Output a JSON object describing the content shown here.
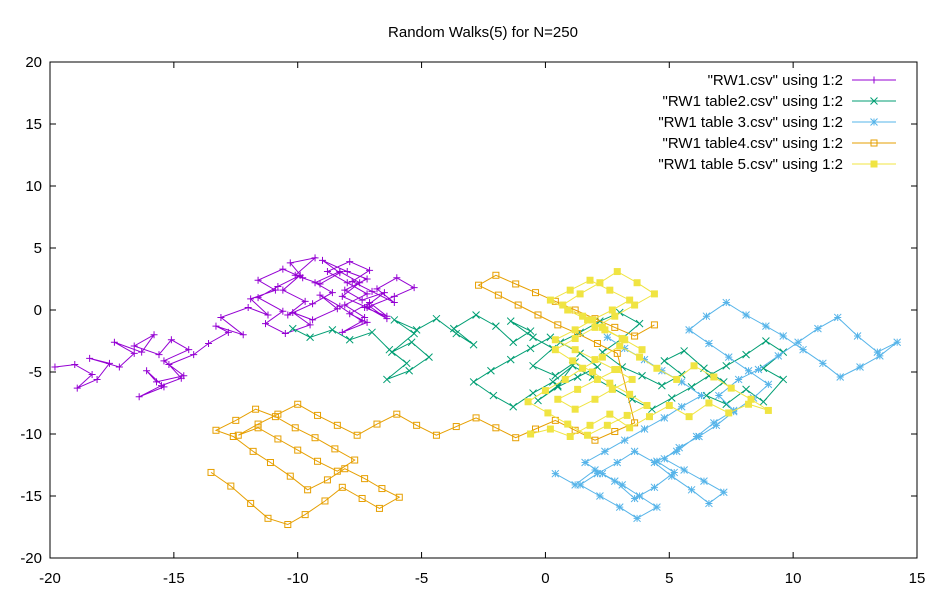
{
  "chart_data": {
    "type": "line",
    "title": "Random Walks(5) for N=250",
    "xlabel": "",
    "ylabel": "",
    "xlim": [
      -20,
      15
    ],
    "ylim": [
      -20,
      20
    ],
    "xticks": [
      -20,
      -15,
      -10,
      -5,
      0,
      5,
      10,
      15
    ],
    "yticks": [
      -20,
      -15,
      -10,
      -5,
      0,
      5,
      10,
      15,
      20
    ],
    "grid": false,
    "legend_position": "top-right",
    "series": [
      {
        "name": "\"RW1.csv\" using 1:2",
        "color": "#9400d3",
        "marker": "plus",
        "x": [
          -19.8,
          -19,
          -18.3,
          -18.9,
          -18.1,
          -17.6,
          -18.4,
          -17.2,
          -16.6,
          -17.4,
          -16.3,
          -15.8,
          -16.6,
          -15.6,
          -15.1,
          -14.4,
          -15.4,
          -14.6,
          -15.7,
          -16.1,
          -15.4,
          -16.4,
          -15.5,
          -14.7,
          -15.2,
          -14.2,
          -13.6,
          -12.8,
          -13.3,
          -12.2,
          -13.1,
          -12,
          -11.2,
          -11.9,
          -10.9,
          -11.6,
          -10.6,
          -9.8,
          -10.3,
          -9.3,
          -10.1,
          -9.1,
          -8.3,
          -9,
          -8,
          -7.2,
          -8.1,
          -7.4,
          -6.5,
          -7.3,
          -6.4,
          -7.1,
          -7.9,
          -7.2,
          -8.2,
          -7.4,
          -8.3,
          -9.1,
          -8.4,
          -9.4,
          -10.2,
          -9.5,
          -10.5,
          -11.3,
          -10.6,
          -11.6,
          -10.8,
          -9.9,
          -10.6,
          -9.7,
          -10.4,
          -9.4,
          -8.6,
          -9.3,
          -8.3,
          -7.5,
          -8.2,
          -7.2,
          -6.4,
          -7.1,
          -6.1,
          -5.3,
          -6,
          -6.8,
          -6.1,
          -7,
          -7.8,
          -7.1,
          -7.9,
          -8.8,
          -8,
          -7.2,
          -8.1,
          -7.3
        ],
        "y": [
          -4.6,
          -4.4,
          -5.2,
          -6.3,
          -5.6,
          -4.3,
          -3.9,
          -4.6,
          -3.5,
          -2.6,
          -3.4,
          -2,
          -2.9,
          -3.6,
          -2.4,
          -3.2,
          -4.1,
          -5.3,
          -5.8,
          -4.9,
          -6.2,
          -7,
          -6.1,
          -5.5,
          -4.4,
          -3.6,
          -2.7,
          -1.8,
          -1.3,
          -2,
          -0.6,
          0.2,
          -0.4,
          0.9,
          1.6,
          2.4,
          3.3,
          2.6,
          3.8,
          4.2,
          2.8,
          2.1,
          3,
          4,
          3.1,
          2.5,
          1.6,
          0.8,
          1.4,
          0.2,
          -0.5,
          0.6,
          -0.3,
          -1,
          -1.8,
          -0.9,
          0.3,
          1.2,
          0.1,
          -0.8,
          -0.2,
          -1.2,
          -1.9,
          -1.1,
          -0.1,
          1,
          1.9,
          2.8,
          1.6,
          0.7,
          -0.4,
          0.5,
          1.4,
          2.2,
          3.1,
          2.2,
          1.1,
          0.2,
          -0.7,
          0.3,
          1.1,
          1.8,
          2.6,
          1.7,
          0.6,
          1.5,
          2.3,
          3.2,
          3.9,
          3.1,
          2.2,
          1.3,
          0.4,
          -0.6
        ]
      },
      {
        "name": "\"RW1 table2.csv\" using 1:2",
        "color": "#009e73",
        "marker": "x",
        "x": [
          -10.2,
          -9.5,
          -8.6,
          -7.9,
          -7,
          -6.3,
          -5.6,
          -6.4,
          -5.5,
          -4.7,
          -5.4,
          -6.2,
          -5.3,
          -6.1,
          -5.2,
          -4.4,
          -3.6,
          -2.9,
          -3.7,
          -2.8,
          -2,
          -1.3,
          -0.6,
          -1.4,
          -0.5,
          0.3,
          -0.5,
          0.4,
          1.2,
          0.5,
          -0.3,
          0.5,
          1.3,
          2.1,
          1.4,
          0.6,
          1.4,
          2.2,
          3,
          3.8,
          3.1,
          2.3,
          3.1,
          3.9,
          4.7,
          5.5,
          4.8,
          5.6,
          6.4,
          7.2,
          6.5,
          7.3,
          8.1,
          8.8,
          9.6,
          8.8,
          9.6,
          8.9,
          8.1,
          7.3,
          6.6,
          5.9,
          5.1,
          4.3,
          3.5,
          2.7,
          1.9,
          1.1,
          0.3,
          -0.5,
          -1.3,
          -2.1,
          -2.9,
          -2.2,
          -1.4,
          -0.6,
          0.2
        ],
        "y": [
          -1.5,
          -2.2,
          -1.6,
          -2.4,
          -1.8,
          -3.2,
          -4.3,
          -5.6,
          -4.9,
          -3.8,
          -2.6,
          -3.4,
          -1.9,
          -0.8,
          -1.6,
          -0.7,
          -1.9,
          -2.8,
          -1.5,
          -0.4,
          -1.3,
          -2.6,
          -1.7,
          -0.9,
          -2.2,
          -3.1,
          -4.5,
          -5.3,
          -4.2,
          -6.1,
          -7.3,
          -6.2,
          -5.4,
          -4.6,
          -3.5,
          -2.6,
          -1.8,
          -0.9,
          -0.2,
          -1.1,
          -2.3,
          -3.4,
          -4.6,
          -5.3,
          -6.1,
          -5.2,
          -4.1,
          -3.3,
          -4.7,
          -5.8,
          -6.9,
          -7.6,
          -6.4,
          -7.4,
          -5.6,
          -4.7,
          -3.4,
          -2.5,
          -3.6,
          -4.5,
          -5.3,
          -6.2,
          -7.1,
          -8,
          -7.2,
          -6.3,
          -5.4,
          -4.5,
          -5.8,
          -6.7,
          -7.8,
          -6.9,
          -5.8,
          -4.9,
          -4,
          -3.1,
          -2.2
        ]
      },
      {
        "name": "\"RW1 table 3.csv\" using 1:2",
        "color": "#56b4e9",
        "marker": "star",
        "x": [
          0.4,
          1.2,
          2,
          2.8,
          3.6,
          4.4,
          5.2,
          4.5,
          5.3,
          6.1,
          6.8,
          7.6,
          7,
          7.8,
          8.6,
          9.4,
          10.2,
          11,
          11.8,
          12.6,
          13.4,
          14.2,
          13.5,
          12.7,
          11.9,
          11.2,
          10.4,
          9.6,
          8.9,
          8.1,
          7.3,
          6.5,
          5.8,
          6.6,
          7.4,
          8.2,
          9,
          8.4,
          7.6,
          6.9,
          6.2,
          5.4,
          4.8,
          5.6,
          6.4,
          7.2,
          6.6,
          5.9,
          5.1,
          4.4,
          3.6,
          2.9,
          2.1,
          1.4,
          2.2,
          3,
          3.7,
          4.5,
          3.8,
          3.1,
          2.3,
          1.6,
          2.4,
          3.2,
          4,
          4.8,
          5.5,
          6.3,
          5.5,
          4.7,
          4,
          3.2,
          2.5
        ],
        "y": [
          -13.2,
          -14.1,
          -12.9,
          -13.8,
          -15.2,
          -14.3,
          -13.1,
          -12.2,
          -11.4,
          -10.2,
          -9.1,
          -8.1,
          -6.9,
          -5.6,
          -4.8,
          -3.7,
          -2.6,
          -1.5,
          -0.6,
          -2.1,
          -3.4,
          -2.6,
          -3.7,
          -4.6,
          -5.4,
          -4.3,
          -3.2,
          -2.1,
          -1.3,
          -0.4,
          0.6,
          -0.5,
          -1.6,
          -2.7,
          -3.8,
          -4.9,
          -6,
          -7.1,
          -8.2,
          -9.3,
          -10.2,
          -11.1,
          -12,
          -12.9,
          -13.8,
          -14.7,
          -15.6,
          -14.5,
          -13.4,
          -12.3,
          -11.4,
          -12.3,
          -13.2,
          -14.1,
          -15,
          -15.9,
          -16.8,
          -15.9,
          -15,
          -14.1,
          -13.2,
          -12.3,
          -11.4,
          -10.5,
          -9.6,
          -8.7,
          -7.8,
          -6.9,
          -5.8,
          -4.9,
          -4,
          -3.1,
          -2.2
        ]
      },
      {
        "name": "\"RW1 table4.csv\" using 1:2",
        "color": "#e69f00",
        "marker": "square-open",
        "x": [
          -13.5,
          -12.7,
          -11.9,
          -11.2,
          -10.4,
          -9.7,
          -8.9,
          -8.2,
          -7.4,
          -6.7,
          -5.9,
          -6.6,
          -7.3,
          -8.1,
          -8.8,
          -9.6,
          -10.3,
          -11.1,
          -11.8,
          -12.6,
          -13.3,
          -12.5,
          -11.7,
          -10.9,
          -10.1,
          -9.3,
          -8.5,
          -7.7,
          -8.4,
          -9.2,
          -10,
          -10.8,
          -11.6,
          -12.4,
          -11.6,
          -10.8,
          -10,
          -9.2,
          -8.4,
          -7.6,
          -6.8,
          -6,
          -5.2,
          -4.4,
          -3.6,
          -2.8,
          -2,
          -1.2,
          -0.4,
          0.4,
          1.2,
          2,
          2.8,
          3.6,
          2.9,
          2.1,
          1.3,
          0.5,
          -0.3,
          -1.1,
          -1.9,
          -2.7,
          -2,
          -1.2,
          -0.4,
          0.4,
          1.2,
          2,
          2.8,
          3.6,
          4.4
        ],
        "y": [
          -13.1,
          -14.2,
          -15.6,
          -16.8,
          -17.3,
          -16.5,
          -15.4,
          -14.3,
          -15.2,
          -16,
          -15.1,
          -14.4,
          -13.6,
          -12.8,
          -13.7,
          -14.5,
          -13.4,
          -12.3,
          -11.4,
          -10.2,
          -9.7,
          -8.9,
          -8,
          -8.6,
          -9.5,
          -10.3,
          -11.2,
          -12.1,
          -13,
          -12.2,
          -11.3,
          -10.4,
          -9.5,
          -10.1,
          -9.2,
          -8.4,
          -7.6,
          -8.5,
          -9.3,
          -10.1,
          -9.2,
          -8.4,
          -9.3,
          -10.1,
          -9.4,
          -8.7,
          -9.5,
          -10.3,
          -9.6,
          -8.9,
          -9.7,
          -10.5,
          -9.8,
          -9.1,
          -3.5,
          -2.7,
          -1.9,
          -1.2,
          -0.4,
          0.4,
          1.2,
          2,
          2.8,
          2.1,
          1.4,
          0.7,
          0,
          -0.7,
          -1.4,
          -2.1,
          -1.2
        ]
      },
      {
        "name": "\"RW1 table 5.csv\" using 1:2",
        "color": "#f0e442",
        "marker": "square-filled",
        "x": [
          -0.6,
          0.2,
          1,
          1.8,
          2.6,
          3.4,
          4.2,
          5,
          5.8,
          6.6,
          7.4,
          8.2,
          9,
          8.3,
          7.5,
          6.8,
          6,
          5.3,
          4.5,
          3.8,
          3,
          2.3,
          1.5,
          0.8,
          0,
          -0.7,
          0.1,
          0.9,
          1.7,
          2.5,
          3.3,
          4.1,
          3.4,
          2.6,
          1.9,
          1.1,
          0.4,
          1.2,
          2,
          2.8,
          3.6,
          4.4,
          3.7,
          2.9,
          2.2,
          1.4,
          0.7,
          1.5,
          2.3,
          3.1,
          3.9,
          3.2,
          2.4,
          1.7,
          0.9,
          0.2,
          1,
          1.8,
          2.6,
          3.4,
          2.7,
          1.9,
          1.2,
          0.4,
          1.2,
          2,
          2.8,
          3.5,
          2.7,
          2,
          1.2,
          0.5,
          1.3,
          2.1,
          2.9
        ],
        "y": [
          -10,
          -9.6,
          -10.2,
          -9.3,
          -8.4,
          -9.5,
          -8.6,
          -7.7,
          -8.6,
          -7.5,
          -8.3,
          -7.6,
          -8.1,
          -7.2,
          -6.3,
          -5.4,
          -4.5,
          -5.6,
          -4.7,
          -3.8,
          -2.9,
          -3.8,
          -4.7,
          -5.6,
          -6.5,
          -7.4,
          -8.3,
          -9.2,
          -10.1,
          -9.3,
          -8.5,
          -7.7,
          -6.8,
          -5.9,
          -5,
          -4.1,
          -3.2,
          -2.3,
          -1.4,
          -0.5,
          0.4,
          1.3,
          2.2,
          3.1,
          2.2,
          1.3,
          0.4,
          -0.5,
          -1.4,
          -2.3,
          -3.2,
          -2.4,
          -1.6,
          -0.8,
          0,
          0.8,
          1.6,
          2.4,
          1.6,
          0.8,
          0,
          -0.8,
          -1.6,
          -2.4,
          -3.2,
          -4,
          -4.8,
          -5.6,
          -6.4,
          -7.2,
          -8,
          -7.2,
          -6.4,
          -5.6,
          -4.8
        ]
      }
    ]
  }
}
